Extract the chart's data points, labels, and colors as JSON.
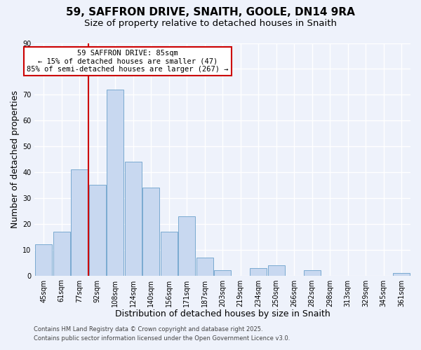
{
  "title": "59, SAFFRON DRIVE, SNAITH, GOOLE, DN14 9RA",
  "subtitle": "Size of property relative to detached houses in Snaith",
  "xlabel": "Distribution of detached houses by size in Snaith",
  "ylabel": "Number of detached properties",
  "bar_color": "#c8d8f0",
  "bar_edge_color": "#7aaad0",
  "background_color": "#eef2fb",
  "grid_color": "white",
  "categories": [
    "45sqm",
    "61sqm",
    "77sqm",
    "92sqm",
    "108sqm",
    "124sqm",
    "140sqm",
    "156sqm",
    "171sqm",
    "187sqm",
    "203sqm",
    "219sqm",
    "234sqm",
    "250sqm",
    "266sqm",
    "282sqm",
    "298sqm",
    "313sqm",
    "329sqm",
    "345sqm",
    "361sqm"
  ],
  "values": [
    12,
    17,
    41,
    35,
    72,
    44,
    34,
    17,
    23,
    7,
    2,
    0,
    3,
    4,
    0,
    2,
    0,
    0,
    0,
    0,
    1
  ],
  "ylim": [
    0,
    90
  ],
  "yticks": [
    0,
    10,
    20,
    30,
    40,
    50,
    60,
    70,
    80,
    90
  ],
  "vline_index": 2.5,
  "vline_color": "#cc0000",
  "annotation_text": "59 SAFFRON DRIVE: 85sqm\n← 15% of detached houses are smaller (47)\n85% of semi-detached houses are larger (267) →",
  "annotation_box_color": "white",
  "annotation_box_edge": "#cc0000",
  "footer_line1": "Contains HM Land Registry data © Crown copyright and database right 2025.",
  "footer_line2": "Contains public sector information licensed under the Open Government Licence v3.0.",
  "title_fontsize": 11,
  "subtitle_fontsize": 9.5,
  "tick_fontsize": 7,
  "label_fontsize": 9,
  "footer_fontsize": 6
}
